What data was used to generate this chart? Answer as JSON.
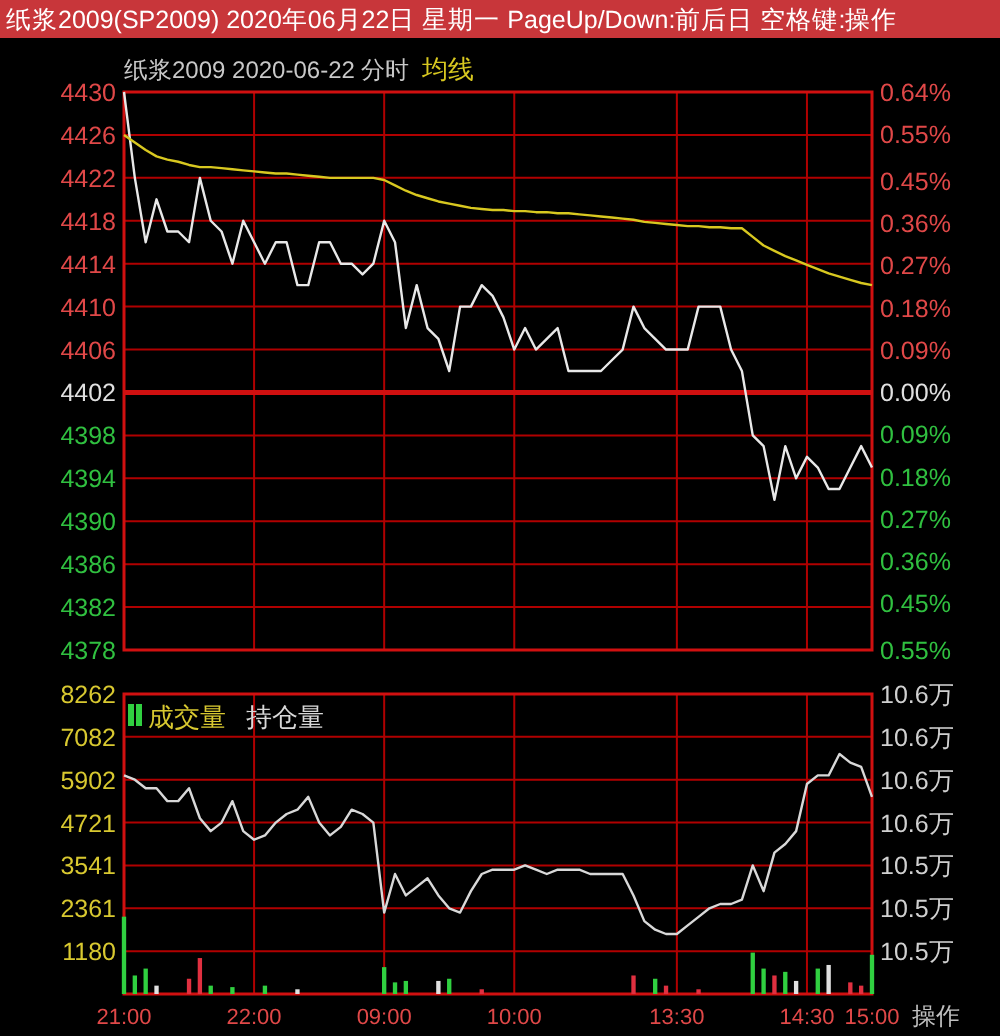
{
  "chart_data": [
    {
      "type": "line",
      "title": "纸浆2009(SP2009) 2020年06月22日 星期一 PageUp/Down:前后日 空格键:操作",
      "subtitle": "纸浆2009  2020-06-22 分时",
      "legend": "top",
      "grid": true,
      "tick_labels": "y",
      "categories": [
        null,
        null,
        null,
        null,
        null,
        null,
        null,
        null,
        null,
        null,
        null,
        null,
        null,
        null,
        null,
        null,
        null,
        null,
        null,
        null,
        null,
        null,
        null,
        null,
        null,
        null,
        null,
        null,
        null,
        null,
        null,
        null,
        null,
        null,
        null,
        null,
        null,
        null,
        null,
        null,
        null,
        null,
        null,
        null,
        null,
        null,
        null,
        null,
        null,
        null,
        null,
        null,
        null,
        null,
        null,
        null,
        null,
        null,
        null,
        null,
        null,
        null,
        null,
        null,
        null,
        null,
        null,
        null,
        null,
        null
      ],
      "ylim": [
        4378,
        4430
      ],
      "yticks": [
        4378,
        4382,
        4386,
        4390,
        4394,
        4398,
        4402,
        4406,
        4410,
        4414,
        4418,
        4422,
        4426,
        4430
      ],
      "y2lim": [
        -0.55,
        0.64
      ],
      "y2ticks": [
        {
          "value": 0.64,
          "label": "0.64%"
        },
        {
          "value": 0.55,
          "label": "0.55%"
        },
        {
          "value": 0.45,
          "label": "0.45%"
        },
        {
          "value": 0.36,
          "label": "0.36%"
        },
        {
          "value": 0.27,
          "label": "0.27%"
        },
        {
          "value": 0.18,
          "label": "0.18%"
        },
        {
          "value": 0.09,
          "label": "0.09%"
        },
        {
          "value": 0,
          "label": "0.00%"
        },
        {
          "value": -0.09,
          "label": "0.09%"
        },
        {
          "value": -0.18,
          "label": "0.18%"
        },
        {
          "value": -0.27,
          "label": "0.27%"
        },
        {
          "value": -0.36,
          "label": "0.36%"
        },
        {
          "value": -0.45,
          "label": "0.45%"
        },
        {
          "value": -0.55,
          "label": "0.55%"
        }
      ],
      "ref_lines": [
        {
          "axis": "y",
          "value": 4402,
          "color": "#d01010"
        }
      ],
      "series": [
        {
          "color": "#e8e8e8",
          "values": [
            4430,
            4422,
            4416,
            4420,
            4417,
            4417,
            4416,
            4422,
            4418,
            4417,
            4414,
            4418,
            4416,
            4414,
            4416,
            4416,
            4412,
            4412,
            4416,
            4416,
            4414,
            4414,
            4413,
            4414,
            4418,
            4416,
            4408,
            4412,
            4408,
            4407,
            4404,
            4410,
            4410,
            4412,
            4411,
            4409,
            4406,
            4408,
            4406,
            4407,
            4408,
            4404,
            4404,
            4404,
            4404,
            4405,
            4406,
            4410,
            4408,
            4407,
            4406,
            4406,
            4406,
            4410,
            4410,
            4410,
            4406,
            4404,
            4398,
            4397,
            4392,
            4397,
            4394,
            4396,
            4395,
            4393,
            4393,
            4395,
            4397,
            4395
          ]
        },
        {
          "name": "均线",
          "color": "#d8c820",
          "values": [
            4426,
            4425.3,
            4424.6,
            4424,
            4423.7,
            4423.5,
            4423.2,
            4423,
            4423,
            4422.9,
            4422.8,
            4422.7,
            4422.6,
            4422.5,
            4422.4,
            4422.4,
            4422.3,
            4422.2,
            4422.1,
            4422,
            4422,
            4422,
            4422,
            4422,
            4421.8,
            4421.3,
            4420.8,
            4420.4,
            4420.1,
            4419.8,
            4419.6,
            4419.4,
            4419.2,
            4419.1,
            4419,
            4419,
            4418.9,
            4418.9,
            4418.8,
            4418.8,
            4418.7,
            4418.7,
            4418.6,
            4418.5,
            4418.4,
            4418.3,
            4418.2,
            4418.1,
            4417.9,
            4417.8,
            4417.7,
            4417.6,
            4417.5,
            4417.5,
            4417.4,
            4417.4,
            4417.3,
            4417.3,
            4416.5,
            4415.7,
            4415.2,
            4414.7,
            4414.3,
            4413.9,
            4413.5,
            4413.1,
            4412.8,
            4412.5,
            4412.2,
            4412
          ]
        }
      ]
    },
    {
      "type": "bar",
      "legend": "top left",
      "grid": true,
      "annotations": [
        "操作"
      ],
      "categories": [
        "21:00",
        null,
        null,
        null,
        null,
        null,
        null,
        null,
        null,
        null,
        null,
        null,
        "22:00",
        null,
        null,
        null,
        null,
        null,
        null,
        null,
        null,
        null,
        null,
        null,
        "09:00",
        null,
        null,
        null,
        null,
        null,
        null,
        null,
        null,
        null,
        null,
        null,
        "10:00",
        null,
        null,
        null,
        null,
        null,
        null,
        null,
        null,
        null,
        null,
        null,
        null,
        null,
        null,
        "13:30",
        null,
        null,
        null,
        null,
        null,
        null,
        null,
        null,
        null,
        null,
        null,
        "14:30",
        null,
        null,
        null,
        null,
        null,
        "15:00"
      ],
      "ylim": [
        0,
        8262
      ],
      "yticks": [
        1180,
        2361,
        3541,
        4721,
        5902,
        7082,
        8262
      ],
      "y2lim": [
        10.512,
        10.582
      ],
      "y2ticks": [
        {
          "value": 10.522,
          "label": "10.5万"
        },
        {
          "value": 10.532,
          "label": "10.5万"
        },
        {
          "value": 10.542,
          "label": "10.5万"
        },
        {
          "value": 10.552,
          "label": "10.6万"
        },
        {
          "value": 10.562,
          "label": "10.6万"
        },
        {
          "value": 10.572,
          "label": "10.6万"
        },
        {
          "value": 10.582,
          "label": "10.6万"
        }
      ],
      "series": [
        {
          "name": "成交量",
          "values": [
            2130,
            510,
            700,
            230,
            null,
            null,
            420,
            990,
            230,
            null,
            190,
            null,
            null,
            230,
            null,
            null,
            130,
            null,
            null,
            null,
            null,
            null,
            null,
            null,
            740,
            320,
            360,
            null,
            null,
            360,
            420,
            null,
            null,
            130,
            null,
            null,
            null,
            null,
            null,
            null,
            null,
            null,
            null,
            null,
            null,
            null,
            null,
            510,
            null,
            420,
            230,
            null,
            null,
            130,
            null,
            null,
            null,
            null,
            1140,
            700,
            510,
            610,
            360,
            null,
            700,
            800,
            null,
            320,
            230,
            1080
          ],
          "colors": [
            "#30d040",
            "#30d040",
            "#30d040",
            "#e0e0e0",
            null,
            null,
            "#e03040",
            "#e03040",
            "#30d040",
            null,
            "#30d040",
            null,
            null,
            "#30d040",
            null,
            null,
            "#e0e0e0",
            null,
            null,
            null,
            null,
            null,
            null,
            null,
            "#30d040",
            "#30d040",
            "#30d040",
            null,
            null,
            "#e0e0e0",
            "#30d040",
            null,
            null,
            "#e03040",
            null,
            null,
            null,
            null,
            null,
            null,
            null,
            null,
            null,
            null,
            null,
            null,
            null,
            "#e03040",
            null,
            "#30d040",
            "#e03040",
            null,
            null,
            "#e03040",
            null,
            null,
            null,
            null,
            "#30d040",
            "#30d040",
            "#e03040",
            "#30d040",
            "#e0e0e0",
            null,
            "#30d040",
            "#e0e0e0",
            null,
            "#e03040",
            "#e03040",
            "#30d040"
          ]
        },
        {
          "name": "持仓量",
          "type": "line",
          "axis": "y2",
          "color": "#d8d8d8",
          "values": [
            10.563,
            10.562,
            10.56,
            10.56,
            10.557,
            10.557,
            10.56,
            10.553,
            10.55,
            10.552,
            10.557,
            10.55,
            10.548,
            10.549,
            10.552,
            10.554,
            10.555,
            10.558,
            10.552,
            10.549,
            10.551,
            10.555,
            10.554,
            10.552,
            10.531,
            10.54,
            10.535,
            10.537,
            10.539,
            10.535,
            10.532,
            10.531,
            10.536,
            10.54,
            10.541,
            10.541,
            10.541,
            10.542,
            10.541,
            10.54,
            10.541,
            10.541,
            10.541,
            10.54,
            10.54,
            10.54,
            10.54,
            10.535,
            10.529,
            10.527,
            10.526,
            10.526,
            10.528,
            10.53,
            10.532,
            10.533,
            10.533,
            10.534,
            10.542,
            10.536,
            10.545,
            10.547,
            10.55,
            10.561,
            10.563,
            10.563,
            10.568,
            10.566,
            10.565,
            10.558
          ]
        }
      ]
    }
  ]
}
